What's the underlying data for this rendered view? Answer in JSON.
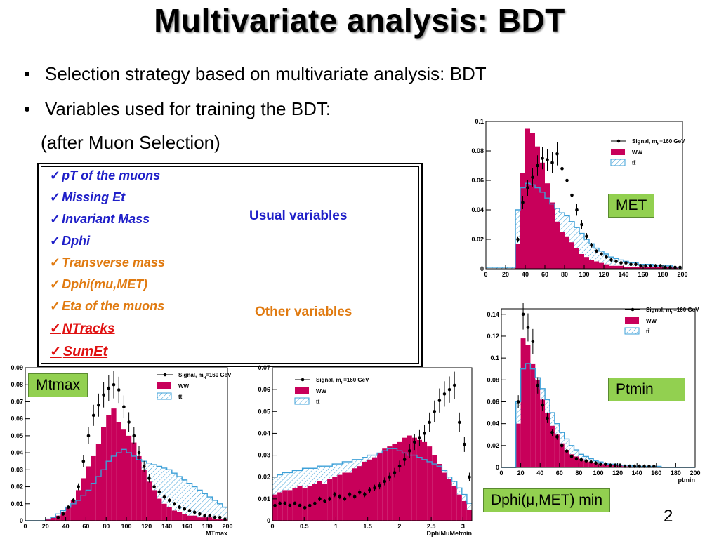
{
  "slide": {
    "title": "Multivariate analysis: BDT",
    "bullets": [
      "Selection strategy based on multivariate analysis: BDT",
      "Variables used for training  the BDT:"
    ],
    "subline": "(after Muon Selection)",
    "variables": [
      {
        "label": "pT of the muons",
        "group": "usual"
      },
      {
        "label": "Missing Et",
        "group": "usual"
      },
      {
        "label": "Invariant Mass",
        "group": "usual"
      },
      {
        "label": "Dphi",
        "group": "usual"
      },
      {
        "label": "Transverse mass",
        "group": "other"
      },
      {
        "label": "Dphi(mu,MET)",
        "group": "other"
      },
      {
        "label": "Eta of the muons",
        "group": "other"
      },
      {
        "label": "NTracks",
        "group": "new"
      },
      {
        "label": "SumEt",
        "group": "new"
      }
    ],
    "check_glyph": "✓",
    "usual_label": "Usual variables",
    "other_label": "Other variables",
    "page_number": "2",
    "colors": {
      "usual": "#1f1fc8",
      "other": "#e07a10",
      "new": "#e01010",
      "tag_bg": "#92d050",
      "ww": "#c8005a",
      "tt": "#3ea0d8"
    }
  },
  "legend": {
    "signal": "Signal, m",
    "signal_sub": "H",
    "signal_rest": "=160 GeV",
    "ww": "WW",
    "tt": "tt̄"
  },
  "chart_data": [
    {
      "type": "bar",
      "id": "met",
      "tag": "MET",
      "xlim": [
        0,
        200
      ],
      "ylim": [
        0,
        0.1
      ],
      "xlabel": "",
      "xticks": [
        0,
        20,
        40,
        60,
        80,
        100,
        120,
        140,
        160,
        180,
        200
      ],
      "yticks": [
        0,
        0.02,
        0.04,
        0.06,
        0.08,
        0.1
      ],
      "ytick_labels": [
        "0",
        "0.02",
        "0.04",
        "0.06",
        "0.08",
        "0.1"
      ],
      "bin_start": 0,
      "bin_width": 5,
      "series": [
        {
          "name": "WW",
          "style": "filled",
          "values": [
            0,
            0,
            0,
            0,
            0,
            0,
            0.017,
            0.065,
            0.095,
            0.092,
            0.083,
            0.072,
            0.058,
            0.045,
            0.032,
            0.025,
            0.022,
            0.018,
            0.014,
            0.01,
            0.008,
            0.006,
            0.005,
            0.004,
            0.003,
            0.002,
            0.002,
            0.002,
            0.001,
            0.001,
            0.001,
            0.001,
            0.001,
            0.001,
            0.001,
            0.001,
            0.001,
            0.001,
            0.001,
            0
          ]
        },
        {
          "name": "tt",
          "style": "hatched",
          "values": [
            0.001,
            0.001,
            0.001,
            0.001,
            0.001,
            0.001,
            0.04,
            0.055,
            0.058,
            0.057,
            0.055,
            0.052,
            0.048,
            0.044,
            0.041,
            0.038,
            0.036,
            0.032,
            0.028,
            0.024,
            0.02,
            0.017,
            0.014,
            0.012,
            0.01,
            0.008,
            0.007,
            0.006,
            0.005,
            0.004,
            0.004,
            0.003,
            0.003,
            0.003,
            0.002,
            0.002,
            0.002,
            0.002,
            0.001,
            0.001
          ]
        },
        {
          "name": "Signal",
          "style": "points",
          "values": [
            null,
            null,
            null,
            null,
            null,
            null,
            0.02,
            0.045,
            0.055,
            0.062,
            0.07,
            0.075,
            0.074,
            0.072,
            0.078,
            0.068,
            0.06,
            0.05,
            0.04,
            0.03,
            0.022,
            0.016,
            0.012,
            0.01,
            0.008,
            0.006,
            0.005,
            0.004,
            0.004,
            0.003,
            0.003,
            0.002,
            0.002,
            0.002,
            0.002,
            0.002,
            0.001,
            0.001,
            0.001,
            0.001
          ]
        }
      ]
    },
    {
      "type": "bar",
      "id": "ptmin",
      "tag": "Ptmin",
      "xlim": [
        0,
        200
      ],
      "ylim": [
        0,
        0.145
      ],
      "xlabel": "ptmin",
      "xticks": [
        0,
        20,
        40,
        60,
        80,
        100,
        120,
        140,
        160,
        180,
        200
      ],
      "yticks": [
        0,
        0.02,
        0.04,
        0.06,
        0.08,
        0.1,
        0.12,
        0.14
      ],
      "ytick_labels": [
        "0",
        "0.02",
        "0.04",
        "0.06",
        "0.08",
        "0.1",
        "0.12",
        "0.14"
      ],
      "bin_start": 0,
      "bin_width": 5,
      "series": [
        {
          "name": "WW",
          "style": "filled",
          "values": [
            0,
            0,
            0,
            0.04,
            0.118,
            0.112,
            0.095,
            0.08,
            0.062,
            0.05,
            0.038,
            0.03,
            0.022,
            0.016,
            0.012,
            0.01,
            0.008,
            0.006,
            0.005,
            0.004,
            0.003,
            0.003,
            0.002,
            0.002,
            0.002,
            0.001,
            0.001,
            0.001,
            0.001,
            0.001,
            0.001,
            0.001,
            0,
            0,
            0,
            0,
            0,
            0,
            0,
            0
          ]
        },
        {
          "name": "tt",
          "style": "hatched",
          "values": [
            0,
            0,
            0,
            0.06,
            0.09,
            0.095,
            0.09,
            0.082,
            0.072,
            0.062,
            0.05,
            0.04,
            0.032,
            0.026,
            0.02,
            0.016,
            0.012,
            0.01,
            0.008,
            0.006,
            0.005,
            0.004,
            0.003,
            0.003,
            0.002,
            0.002,
            0.002,
            0.001,
            0.001,
            0.001,
            0.001,
            0.001,
            0.001,
            0,
            0,
            0,
            0,
            0,
            0,
            0
          ]
        },
        {
          "name": "Signal",
          "style": "points",
          "values": [
            null,
            null,
            null,
            0.06,
            0.14,
            0.128,
            0.115,
            0.075,
            0.057,
            0.045,
            0.032,
            0.028,
            0.02,
            0.015,
            0.01,
            0.008,
            0.007,
            0.006,
            0.005,
            0.004,
            0.003,
            0.003,
            0.002,
            0.002,
            0.002,
            0.001,
            0.001,
            0.001,
            0.001,
            0.001,
            0.001,
            0.001,
            null,
            null,
            null,
            null,
            null,
            null,
            null,
            null
          ]
        }
      ]
    },
    {
      "type": "bar",
      "id": "mtmax",
      "tag": "Mtmax",
      "xlim": [
        0,
        200
      ],
      "ylim": [
        0,
        0.09
      ],
      "xlabel": "MTmax",
      "xticks": [
        0,
        20,
        40,
        60,
        80,
        100,
        120,
        140,
        160,
        180,
        200
      ],
      "yticks": [
        0,
        0.01,
        0.02,
        0.03,
        0.04,
        0.05,
        0.06,
        0.07,
        0.08,
        0.09
      ],
      "ytick_labels": [
        "0",
        "0.01",
        "0.02",
        "0.03",
        "0.04",
        "0.05",
        "0.06",
        "0.07",
        "0.08",
        "0.09"
      ],
      "bin_start": 0,
      "bin_width": 5,
      "series": [
        {
          "name": "WW",
          "style": "filled",
          "values": [
            0,
            0,
            0,
            0,
            0.001,
            0.002,
            0.003,
            0.005,
            0.008,
            0.012,
            0.018,
            0.025,
            0.032,
            0.038,
            0.045,
            0.055,
            0.062,
            0.066,
            0.058,
            0.054,
            0.05,
            0.046,
            0.038,
            0.03,
            0.023,
            0.018,
            0.013,
            0.01,
            0.008,
            0.006,
            0.005,
            0.004,
            0.003,
            0.003,
            0.002,
            0.002,
            0.002,
            0.001,
            0.001,
            0.001
          ]
        },
        {
          "name": "tt",
          "style": "hatched",
          "values": [
            0,
            0,
            0,
            0,
            0.001,
            0.002,
            0.004,
            0.006,
            0.008,
            0.01,
            0.012,
            0.015,
            0.018,
            0.022,
            0.026,
            0.03,
            0.035,
            0.038,
            0.04,
            0.042,
            0.04,
            0.038,
            0.036,
            0.035,
            0.034,
            0.033,
            0.032,
            0.031,
            0.03,
            0.028,
            0.026,
            0.024,
            0.022,
            0.02,
            0.018,
            0.016,
            0.014,
            0.012,
            0.01,
            0.008
          ]
        },
        {
          "name": "Signal",
          "style": "points",
          "values": [
            null,
            null,
            null,
            null,
            null,
            null,
            0.002,
            0.004,
            0.008,
            0.012,
            0.02,
            0.035,
            0.05,
            0.062,
            0.068,
            0.074,
            0.078,
            0.08,
            0.077,
            0.067,
            0.058,
            0.05,
            0.04,
            0.032,
            0.025,
            0.02,
            0.017,
            0.014,
            0.012,
            0.01,
            0.008,
            0.007,
            0.006,
            0.005,
            0.004,
            0.003,
            0.003,
            0.002,
            0.002,
            0.001
          ]
        }
      ]
    },
    {
      "type": "bar",
      "id": "dphi",
      "tag": "Dphi(μ,MET) min",
      "xlim": [
        0,
        3.14
      ],
      "ylim": [
        0,
        0.07
      ],
      "xlabel": "DphiMuMetmin",
      "xticks": [
        0,
        0.5,
        1,
        1.5,
        2,
        2.5,
        3
      ],
      "yticks": [
        0,
        0.01,
        0.02,
        0.03,
        0.04,
        0.05,
        0.06,
        0.07
      ],
      "ytick_labels": [
        "0",
        "0.01",
        "0.02",
        "0.03",
        "0.04",
        "0.05",
        "0.06",
        "0.07"
      ],
      "bin_start": 0,
      "bin_width": 0.0785,
      "series": [
        {
          "name": "WW",
          "style": "filled",
          "values": [
            0.012,
            0.013,
            0.014,
            0.014,
            0.015,
            0.016,
            0.015,
            0.016,
            0.017,
            0.018,
            0.017,
            0.019,
            0.02,
            0.021,
            0.022,
            0.022,
            0.024,
            0.025,
            0.027,
            0.028,
            0.029,
            0.031,
            0.033,
            0.034,
            0.035,
            0.036,
            0.038,
            0.039,
            0.038,
            0.037,
            0.036,
            0.034,
            0.03,
            0.026,
            0.022,
            0.019,
            0.016,
            0.012,
            0.009,
            0.005
          ]
        },
        {
          "name": "tt",
          "style": "hatched",
          "values": [
            0.02,
            0.021,
            0.022,
            0.022,
            0.023,
            0.023,
            0.024,
            0.024,
            0.024,
            0.025,
            0.025,
            0.025,
            0.026,
            0.026,
            0.027,
            0.027,
            0.028,
            0.028,
            0.029,
            0.03,
            0.03,
            0.031,
            0.032,
            0.033,
            0.033,
            0.032,
            0.031,
            0.03,
            0.03,
            0.029,
            0.028,
            0.027,
            0.026,
            0.025,
            0.023,
            0.02,
            0.018,
            0.015,
            0.012,
            0.008
          ]
        },
        {
          "name": "Signal",
          "style": "points",
          "values": [
            0.007,
            0.008,
            0.008,
            0.007,
            0.008,
            0.007,
            0.006,
            0.007,
            0.008,
            0.01,
            0.009,
            0.01,
            0.012,
            0.011,
            0.01,
            0.012,
            0.011,
            0.013,
            0.012,
            0.014,
            0.015,
            0.016,
            0.018,
            0.02,
            0.022,
            0.025,
            0.028,
            0.032,
            0.036,
            0.038,
            0.04,
            0.045,
            0.05,
            0.055,
            0.058,
            0.06,
            0.062,
            0.045,
            0.035,
            0.02
          ]
        }
      ]
    }
  ]
}
